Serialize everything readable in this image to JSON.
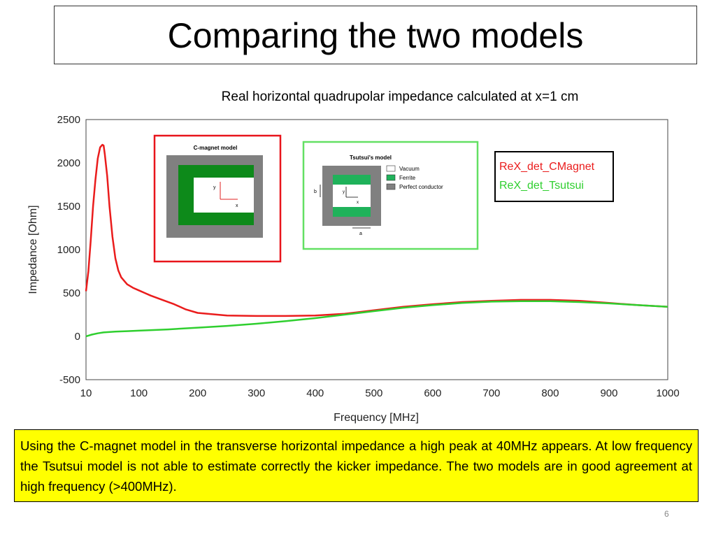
{
  "slide": {
    "title": "Comparing the two models",
    "subtitle": "Real horizontal quadrupolar impedance calculated at x=1 cm",
    "note": "Using the C-magnet model in the transverse horizontal impedance a high peak at 40MHz appears. At low frequency the Tsutsui model is not able to estimate correctly the kicker impedance. The two models are in good agreement at high frequency (>400MHz).",
    "page_number": "6"
  },
  "insets": {
    "cmagnet": {
      "title": "C-magnet model",
      "axis_y": "y",
      "axis_x": "x",
      "border_color": "#e8141b"
    },
    "tsutsui": {
      "title": "Tsutsui's model",
      "legend": [
        "Vacuum",
        "Ferrite",
        "Perfect conductor"
      ],
      "label_b": "b",
      "label_a": "a",
      "axis_y": "y",
      "axis_x": "x",
      "border_color": "#63e063"
    }
  },
  "colors": {
    "cmagnet": "#ea1c1c",
    "tsutsui": "#2fcf2f",
    "ferrite": "#0d8a1a",
    "conductor": "#808080",
    "ferrite_legend": "#1fb25a"
  },
  "chart_data": {
    "type": "line",
    "xlabel": "Frequency  [MHz]",
    "ylabel": "Impedance [Ohm]",
    "xlim": [
      10,
      1000
    ],
    "ylim": [
      -500,
      2500
    ],
    "xticks": [
      10,
      100,
      200,
      300,
      400,
      500,
      600,
      700,
      800,
      900,
      1000
    ],
    "yticks": [
      -500,
      0,
      500,
      1000,
      1500,
      2000,
      2500
    ],
    "grid": true,
    "legend_position": "top-right",
    "series": [
      {
        "name": "ReX_det_CMagnet",
        "color": "#ea1c1c",
        "x": [
          10,
          14,
          18,
          22,
          26,
          30,
          34,
          38,
          40,
          42,
          46,
          50,
          55,
          60,
          65,
          70,
          80,
          90,
          100,
          110,
          120,
          140,
          160,
          180,
          200,
          250,
          300,
          350,
          400,
          450,
          500,
          550,
          600,
          650,
          700,
          750,
          800,
          850,
          900,
          950,
          1000
        ],
        "y": [
          520,
          750,
          1100,
          1500,
          1800,
          2050,
          2180,
          2210,
          2200,
          2100,
          1850,
          1500,
          1150,
          900,
          760,
          680,
          600,
          560,
          530,
          500,
          470,
          420,
          370,
          310,
          270,
          240,
          235,
          235,
          240,
          260,
          300,
          340,
          370,
          395,
          410,
          420,
          420,
          410,
          385,
          360,
          340
        ]
      },
      {
        "name": "ReX_det_Tsutsui",
        "color": "#2fcf2f",
        "x": [
          10,
          20,
          30,
          40,
          60,
          80,
          100,
          150,
          200,
          250,
          300,
          350,
          400,
          450,
          500,
          550,
          600,
          650,
          700,
          750,
          800,
          850,
          900,
          950,
          1000
        ],
        "y": [
          0,
          20,
          35,
          45,
          55,
          60,
          65,
          80,
          100,
          120,
          145,
          175,
          210,
          250,
          290,
          330,
          360,
          385,
          400,
          405,
          405,
          395,
          380,
          360,
          340
        ]
      }
    ]
  }
}
